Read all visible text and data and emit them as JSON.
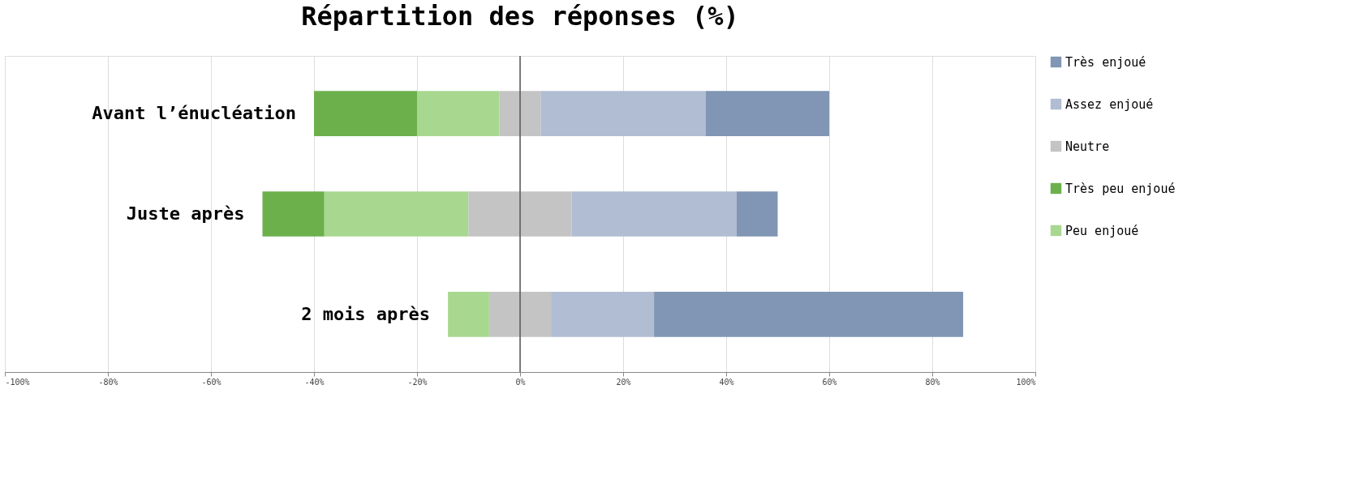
{
  "chart_data": {
    "type": "bar",
    "title": "Répartition des réponses (%)",
    "orientation": "horizontal",
    "stacked": true,
    "categories": [
      "Avant l’énucléation",
      "Juste après",
      "2 mois après"
    ],
    "series": [
      {
        "color": "#c4c4c4",
        "values": [
          -4,
          -10,
          -6
        ]
      },
      {
        "name": "Peu enjoué",
        "color": "#a8d890",
        "values": [
          -16,
          -28,
          -8
        ]
      },
      {
        "name": "Très peu enjoué",
        "color": "#6cb04c",
        "values": [
          -20,
          -12,
          null
        ]
      },
      {
        "name": "Neutre",
        "color": "#c4c4c4",
        "values": [
          4,
          10,
          6
        ]
      },
      {
        "name": "Assez enjoué",
        "color": "#b0bdd2",
        "values": [
          32,
          32,
          20
        ]
      },
      {
        "name": "Très enjoué",
        "color": "#8096b4",
        "values": [
          24,
          8,
          60
        ]
      }
    ],
    "xlim": [
      -100,
      100
    ],
    "xticks": [
      {
        "value": -100,
        "label": "-100%"
      },
      {
        "value": -80,
        "label": "-80%"
      },
      {
        "value": -60,
        "label": "-60%"
      },
      {
        "value": -40,
        "label": "-40%"
      },
      {
        "value": -20,
        "label": "-20%"
      },
      {
        "value": 0,
        "label": "0%"
      },
      {
        "value": 20,
        "label": "20%"
      },
      {
        "value": 40,
        "label": "40%"
      },
      {
        "value": 60,
        "label": "60%"
      },
      {
        "value": 80,
        "label": "80%"
      },
      {
        "value": 100,
        "label": "100%"
      }
    ],
    "ref_lines": [
      {
        "axis": "x",
        "value": 0,
        "color": "#555555"
      }
    ],
    "grid": "x",
    "legend": "right"
  }
}
